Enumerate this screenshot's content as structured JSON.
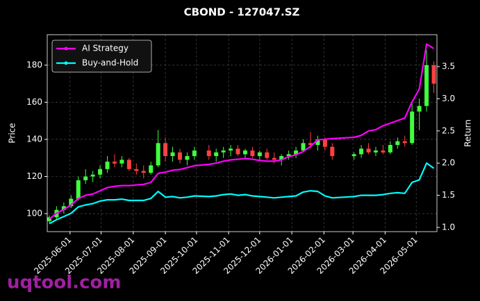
{
  "chart_data": {
    "type": "candlestick",
    "title": "CBOND - 127047.SZ",
    "ylabel": "Price",
    "y2label": "Return",
    "watermark": "uqtool.com",
    "up_color": "#40ff40",
    "down_color": "#ff4040",
    "grid": true,
    "legend": "upper left",
    "x": [
      "2025-05-12",
      "2025-05-19",
      "2025-05-26",
      "2025-06-02",
      "2025-06-09",
      "2025-06-16",
      "2025-06-23",
      "2025-06-30",
      "2025-07-07",
      "2025-07-14",
      "2025-07-21",
      "2025-07-28",
      "2025-08-04",
      "2025-08-11",
      "2025-08-18",
      "2025-08-25",
      "2025-09-01",
      "2025-09-08",
      "2025-09-15",
      "2025-09-22",
      "2025-09-29",
      "2025-10-13",
      "2025-10-20",
      "2025-10-27",
      "2025-11-03",
      "2025-11-10",
      "2025-11-17",
      "2025-11-24",
      "2025-12-01",
      "2025-12-08",
      "2025-12-15",
      "2025-12-22",
      "2025-12-29",
      "2026-01-05",
      "2026-01-12",
      "2026-01-19",
      "2026-01-26",
      "2026-02-02",
      "2026-02-09",
      "2026-03-02",
      "2026-03-09",
      "2026-03-16",
      "2026-03-23",
      "2026-03-30",
      "2026-04-06",
      "2026-04-13",
      "2026-04-20",
      "2026-04-27",
      "2026-05-04",
      "2026-05-11",
      "2026-05-18"
    ],
    "open": [
      96,
      98,
      102,
      104,
      108,
      118,
      120,
      121,
      124,
      128,
      127,
      129,
      124,
      123,
      122,
      126,
      138,
      131,
      133,
      129,
      131,
      134,
      131,
      133,
      134,
      135,
      132,
      134,
      131,
      133,
      130,
      129,
      131,
      132,
      134,
      138,
      137,
      140,
      136,
      131,
      132,
      135,
      133,
      134,
      133,
      137,
      139,
      138,
      155,
      158,
      180
    ],
    "high": [
      99,
      104,
      106,
      110,
      120,
      124,
      123,
      126,
      131,
      132,
      131,
      130,
      127,
      126,
      128,
      145,
      141,
      136,
      135,
      133,
      136,
      137,
      135,
      136,
      137,
      137,
      135,
      136,
      134,
      135,
      133,
      132,
      134,
      136,
      140,
      144,
      142,
      141,
      138,
      133,
      137,
      138,
      136,
      137,
      139,
      141,
      142,
      160,
      162,
      188,
      182
    ],
    "low": [
      95,
      97,
      100,
      103,
      107,
      116,
      117,
      119,
      122,
      125,
      125,
      123,
      121,
      119,
      121,
      125,
      128,
      128,
      127,
      126,
      129,
      129,
      128,
      130,
      131,
      131,
      130,
      130,
      129,
      129,
      127,
      126,
      129,
      130,
      133,
      135,
      134,
      134,
      129,
      129,
      130,
      132,
      131,
      132,
      132,
      135,
      136,
      137,
      145,
      155,
      165
    ],
    "close": [
      98,
      102,
      104,
      108,
      118,
      120,
      121,
      124,
      128,
      127,
      129,
      124,
      123,
      122,
      126,
      138,
      131,
      133,
      129,
      131,
      134,
      131,
      133,
      134,
      135,
      132,
      134,
      131,
      133,
      130,
      129,
      131,
      132,
      134,
      138,
      137,
      140,
      136,
      131,
      132,
      135,
      133,
      134,
      133,
      137,
      139,
      138,
      155,
      158,
      180,
      170
    ],
    "series": [
      {
        "name": "AI Strategy",
        "color": "#ff00ff",
        "axis": "y2",
        "values": [
          1.13,
          1.22,
          1.28,
          1.35,
          1.45,
          1.5,
          1.52,
          1.57,
          1.62,
          1.64,
          1.65,
          1.65,
          1.66,
          1.67,
          1.7,
          1.84,
          1.86,
          1.89,
          1.9,
          1.93,
          1.96,
          1.98,
          2.0,
          2.03,
          2.05,
          2.06,
          2.07,
          2.06,
          2.04,
          2.03,
          2.03,
          2.05,
          2.1,
          2.13,
          2.18,
          2.26,
          2.36,
          2.37,
          2.38,
          2.4,
          2.43,
          2.5,
          2.52,
          2.58,
          2.62,
          2.66,
          2.7,
          2.95,
          3.15,
          3.85,
          3.78
        ]
      },
      {
        "name": "Buy-and-Hold",
        "color": "#00ffff",
        "axis": "y2",
        "values": [
          1.06,
          1.12,
          1.17,
          1.22,
          1.32,
          1.35,
          1.37,
          1.41,
          1.43,
          1.43,
          1.44,
          1.42,
          1.42,
          1.42,
          1.45,
          1.56,
          1.47,
          1.48,
          1.46,
          1.47,
          1.49,
          1.48,
          1.49,
          1.51,
          1.52,
          1.5,
          1.51,
          1.49,
          1.48,
          1.47,
          1.46,
          1.47,
          1.48,
          1.49,
          1.55,
          1.57,
          1.56,
          1.49,
          1.46,
          1.48,
          1.5,
          1.5,
          1.5,
          1.51,
          1.53,
          1.54,
          1.53,
          1.7,
          1.74,
          2.0,
          1.92
        ]
      }
    ],
    "xlim": [
      "2025-05-10",
      "2026-05-21"
    ],
    "xticks": [
      "2025-06-01",
      "2025-07-01",
      "2025-08-01",
      "2025-09-01",
      "2025-10-01",
      "2025-11-01",
      "2025-12-01",
      "2026-01-01",
      "2026-02-01",
      "2026-03-01",
      "2026-04-01",
      "2026-05-01"
    ],
    "ylim": [
      90.3,
      196.4
    ],
    "yticks": [
      100,
      120,
      140,
      160,
      180
    ],
    "y2lim": [
      0.935,
      3.995
    ],
    "y2ticks": [
      {
        "value": 1,
        "label": "1.0"
      },
      1.5,
      {
        "value": 2,
        "label": "2.0"
      },
      2.5,
      {
        "value": 3,
        "label": "3.0"
      },
      3.5
    ]
  }
}
